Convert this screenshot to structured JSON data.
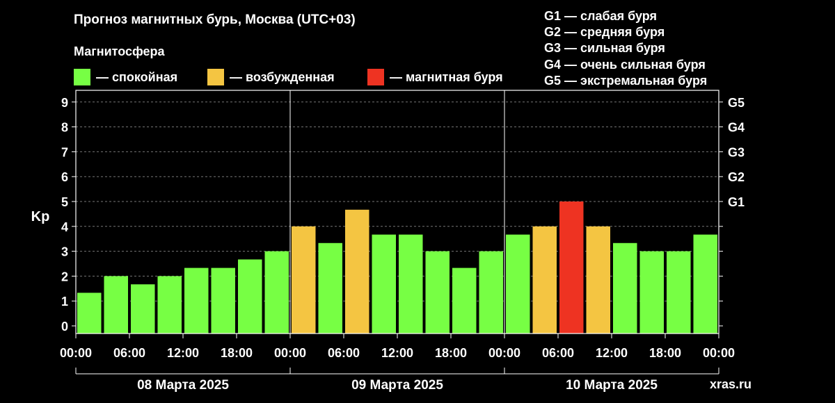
{
  "title": "Прогноз магнитных бурь, Москва (UTC+03)",
  "magnetosphere_label": "Магнитосфера",
  "legend": [
    {
      "label": "— спокойная",
      "color": "#77ff44"
    },
    {
      "label": "— возбужденная",
      "color": "#f4c542"
    },
    {
      "label": "— магнитная буря",
      "color": "#ee3322"
    }
  ],
  "g_scale": [
    "G1 — слабая буря",
    "G2 — средняя буря",
    "G3 — сильная буря",
    "G4 — очень сильная буря",
    "G5 — экстремальная буря"
  ],
  "watermark": "xras.ru",
  "chart_data": {
    "type": "bar",
    "ylabel": "Kp",
    "ylim": [
      0,
      9
    ],
    "yticks": [
      "0",
      "1",
      "2",
      "3",
      "4",
      "5",
      "6",
      "7",
      "8",
      "9"
    ],
    "right_ticks": [
      {
        "y": 5,
        "label": "G1"
      },
      {
        "y": 6,
        "label": "G2"
      },
      {
        "y": 7,
        "label": "G3"
      },
      {
        "y": 8,
        "label": "G4"
      },
      {
        "y": 9,
        "label": "G5"
      }
    ],
    "xtick_labels": [
      "00:00",
      "06:00",
      "12:00",
      "18:00",
      "00:00",
      "06:00",
      "12:00",
      "18:00",
      "00:00",
      "06:00",
      "12:00",
      "18:00",
      "00:00"
    ],
    "days": [
      "08 Марта 2025",
      "09 Марта 2025",
      "10 Марта 2025"
    ],
    "interval_hours": 3,
    "values": [
      1.33,
      2,
      1.67,
      2,
      2.33,
      2.33,
      2.67,
      3,
      4,
      3.33,
      4.67,
      3.67,
      3.67,
      3,
      2.33,
      3,
      3.67,
      4,
      5,
      4,
      3.33,
      3,
      3,
      3.67
    ],
    "levels": [
      "quiet",
      "quiet",
      "quiet",
      "quiet",
      "quiet",
      "quiet",
      "quiet",
      "quiet",
      "active",
      "quiet",
      "active",
      "quiet",
      "quiet",
      "quiet",
      "quiet",
      "quiet",
      "quiet",
      "active",
      "storm",
      "active",
      "quiet",
      "quiet",
      "quiet",
      "quiet"
    ],
    "level_colors": {
      "quiet": "#77ff44",
      "active": "#f4c542",
      "storm": "#ee3322"
    },
    "grid": true
  }
}
